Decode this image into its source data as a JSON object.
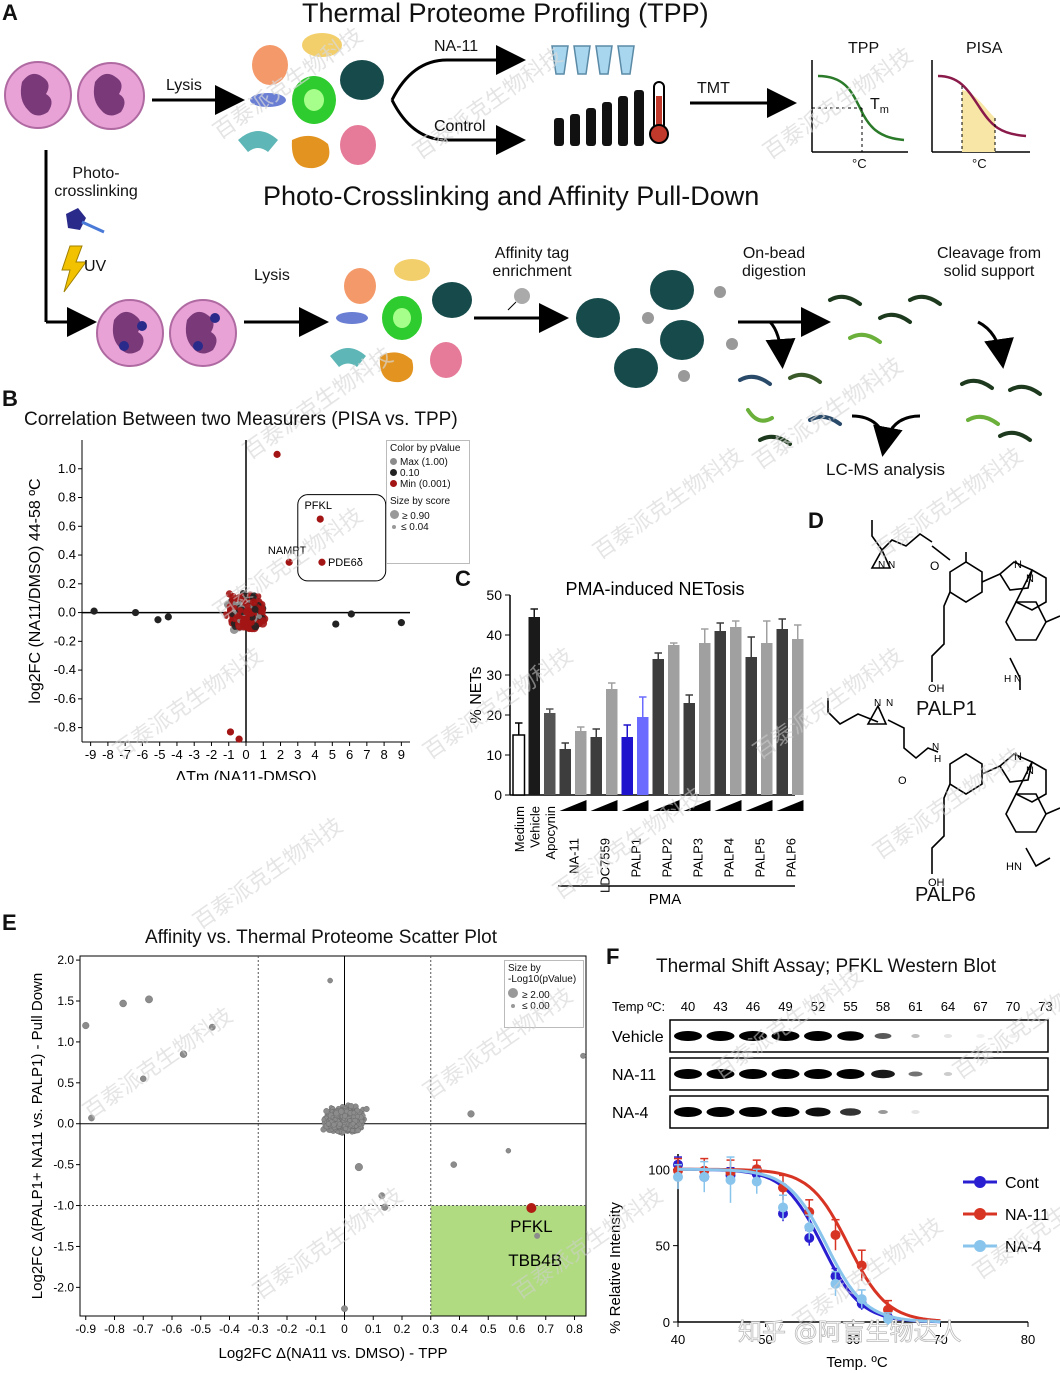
{
  "panels": {
    "A": "A",
    "B": "B",
    "C": "C",
    "D": "D",
    "E": "E",
    "F": "F"
  },
  "panel_a": {
    "title_tpp": "Thermal Proteome Profiling (TPP)",
    "title_photo": "Photo-Crosslinking and Affinity Pull-Down",
    "lysis": "Lysis",
    "na11": "NA-11",
    "control": "Control",
    "tmt": "TMT",
    "tpp_plot_title": "TPP",
    "pisa_plot_title": "PISA",
    "tm_label": "T",
    "tm_sub": "m",
    "degc": "°C",
    "photo_line1": "Photo-",
    "photo_line2": "crosslinking",
    "uv": "UV",
    "lysis2": "Lysis",
    "affinity_line1": "Affinity tag",
    "affinity_line2": "enrichment",
    "onbead_line1": "On-bead",
    "onbead_line2": "digestion",
    "cleavage_line1": "Cleavage from",
    "cleavage_line2": "solid support",
    "lcms": "LC-MS analysis"
  },
  "panel_b": {
    "legend_title": "Color by pValue",
    "legend_color_items": [
      "Max (1.00)",
      "0.10",
      "Min (0.001)"
    ],
    "legend_colors": [
      "#8c8c8c",
      "#222222",
      "#a31515"
    ],
    "legend_size_title": "Size by score",
    "legend_size_items": [
      "≥ 0.90",
      "≤ 0.04"
    ],
    "highlight_labels": [
      "PFKL",
      "NAMPT",
      "PDE6δ"
    ],
    "chart_data": {
      "type": "scatter",
      "title": "Correlation Between two Measurers (PISA vs. TPP)",
      "xlabel": "ΔTm (NA11-DMSO)",
      "ylabel": "log2FC (NA11/DMSO) 44-58 ºC",
      "xlim": [
        -9.5,
        9.5
      ],
      "ylim": [
        -0.9,
        1.2
      ],
      "x_ticks": [
        "-9",
        "-8",
        "-7",
        "-6",
        "-5",
        "-4",
        "-3",
        "-2",
        "-1",
        "0",
        "1",
        "2",
        "3",
        "4",
        "5",
        "6",
        "7",
        "8",
        "9"
      ],
      "y_ticks": [
        "1.0",
        "0.8",
        "0.6",
        "0.4",
        "0.2",
        "0.0",
        "-0.2",
        "-0.4",
        "-0.6",
        "-0.8"
      ],
      "highlighted_points": [
        {
          "label": "PFKL",
          "x": 4.3,
          "y": 0.65
        },
        {
          "label": "NAMPT",
          "x": 2.5,
          "y": 0.35
        },
        {
          "label": "PDE6δ",
          "x": 4.4,
          "y": 0.35
        }
      ]
    }
  },
  "panel_c": {
    "chart_data": {
      "type": "bar",
      "title": "PMA-induced NETosis",
      "ylabel": "% NETs",
      "ylim": [
        0,
        50
      ],
      "y_ticks": [
        "0",
        "10",
        "20",
        "30",
        "40",
        "50"
      ],
      "bars": [
        {
          "label": "Medium",
          "value": 15,
          "err": 3,
          "color": "#ffffff"
        },
        {
          "label": "Vehicle",
          "value": 44.5,
          "err": 2,
          "color": "#1a1a1a"
        },
        {
          "label": "Apocynin",
          "value": 20.5,
          "err": 1,
          "color": "#555555"
        },
        {
          "label": "NA-11",
          "value": 11.5,
          "err": 1.5,
          "color": "#3d3d3d"
        },
        {
          "label": "",
          "value": 16,
          "err": 1,
          "color": "#a0a0a0"
        },
        {
          "label": "LDC7559",
          "value": 14.5,
          "err": 2,
          "color": "#3d3d3d"
        },
        {
          "label": "",
          "value": 26.5,
          "err": 1.5,
          "color": "#a0a0a0"
        },
        {
          "label": "PALP1",
          "value": 14.5,
          "err": 3,
          "color": "#1e12cc"
        },
        {
          "label": "",
          "value": 19.5,
          "err": 5,
          "color": "#6b6bff"
        },
        {
          "label": "PALP2",
          "value": 34,
          "err": 1.5,
          "color": "#3d3d3d"
        },
        {
          "label": "",
          "value": 37.5,
          "err": 0.5,
          "color": "#a0a0a0"
        },
        {
          "label": "PALP3",
          "value": 23,
          "err": 2,
          "color": "#3d3d3d"
        },
        {
          "label": "",
          "value": 38,
          "err": 3.5,
          "color": "#a0a0a0"
        },
        {
          "label": "PALP4",
          "value": 41,
          "err": 2,
          "color": "#3d3d3d"
        },
        {
          "label": "",
          "value": 42,
          "err": 1.5,
          "color": "#a0a0a0"
        },
        {
          "label": "PALP5",
          "value": 34.5,
          "err": 5,
          "color": "#3d3d3d"
        },
        {
          "label": "",
          "value": 38,
          "err": 5.5,
          "color": "#a0a0a0"
        },
        {
          "label": "PALP6",
          "value": 41.5,
          "err": 2.5,
          "color": "#3d3d3d"
        },
        {
          "label": "",
          "value": 39,
          "err": 3.5,
          "color": "#a0a0a0"
        }
      ],
      "group_label": "PMA"
    }
  },
  "panel_d": {
    "palp1": "PALP1",
    "palp6": "PALP6",
    "atoms": {
      "o": "O",
      "oh": "OH",
      "n": "N",
      "hn": "HN",
      "h": "H"
    }
  },
  "panel_e": {
    "legend_title_1": "Size by",
    "legend_title_2": "-Log10(pValue)",
    "legend_items": [
      "≥ 2.00",
      "≤ 0.00"
    ],
    "highlight_labels": [
      "PFKL",
      "TBB4B"
    ],
    "highlight_color": "#b0db80",
    "chart_data": {
      "type": "scatter",
      "title": "Affinity vs. Thermal Proteome Scatter Plot",
      "xlabel": "Log2FC Δ(NA11 vs. DMSO) - TPP",
      "ylabel": "Log2FC Δ(PALP1+ NA11 vs. PALP1) - Pull Down",
      "xlim": [
        -0.92,
        0.84
      ],
      "ylim": [
        -2.35,
        2.05
      ],
      "x_ticks": [
        "-0.9",
        "-0.8",
        "-0.7",
        "-0.6",
        "-0.5",
        "-0.4",
        "-0.3",
        "-0.2",
        "-0.1",
        "0",
        "0.1",
        "0.2",
        "0.3",
        "0.4",
        "0.5",
        "0.6",
        "0.7",
        "0.8"
      ],
      "y_ticks": [
        "2.0",
        "1.5",
        "1.0",
        "0.5",
        "0.0",
        "-0.5",
        "-1.0",
        "-1.5",
        "-2.0"
      ],
      "thresholds": {
        "x": [
          -0.3,
          0.3
        ],
        "y": [
          -1.0
        ]
      },
      "highlighted_points": [
        {
          "label": "PFKL",
          "x": 0.65,
          "y": -1.03
        },
        {
          "label": "TBB4B",
          "x": 0.67,
          "y": -1.37
        }
      ]
    }
  },
  "panel_f": {
    "wb_title": "Thermal Shift Assay; PFKL Western Blot",
    "temp_label": "Temp ºC:",
    "temps": [
      "40",
      "43",
      "46",
      "49",
      "52",
      "55",
      "58",
      "61",
      "64",
      "67",
      "70",
      "73"
    ],
    "rows": [
      "Vehicle",
      "NA-11",
      "NA-4"
    ],
    "band_intensity": [
      [
        1,
        1,
        1,
        1,
        1,
        0.95,
        0.6,
        0.2,
        0.05,
        0.01,
        0.01,
        0
      ],
      [
        1,
        1,
        1,
        1,
        1,
        1,
        0.85,
        0.5,
        0.15,
        0,
        0,
        0
      ],
      [
        1,
        1,
        1,
        1,
        0.9,
        0.75,
        0.35,
        0.05,
        0,
        0,
        0,
        0
      ]
    ],
    "chart_data": {
      "type": "line",
      "xlabel": "Temp. ºC",
      "ylabel": "% Relative Intensity",
      "xlim": [
        40,
        80
      ],
      "ylim": [
        0,
        110
      ],
      "x_ticks": [
        "40",
        "50",
        "60",
        "70",
        "80"
      ],
      "y_ticks": [
        "0",
        "50",
        "100"
      ],
      "series": [
        {
          "name": "Cont",
          "color": "#2a1fd0",
          "tm": 56.5,
          "points": [
            [
              40,
              103
            ],
            [
              43,
              95
            ],
            [
              46,
              96
            ],
            [
              49,
              97
            ],
            [
              52,
              71
            ],
            [
              55,
              55
            ],
            [
              58,
              30
            ],
            [
              61,
              12
            ],
            [
              64,
              3
            ]
          ],
          "errs": [
            5,
            5,
            5,
            5,
            5,
            5,
            5,
            4,
            3
          ]
        },
        {
          "name": "NA-11",
          "color": "#d83424",
          "tm": 59.5,
          "points": [
            [
              40,
              99
            ],
            [
              43,
              99
            ],
            [
              46,
              98
            ],
            [
              49,
              100
            ],
            [
              52,
              88
            ],
            [
              55,
              72
            ],
            [
              58,
              57
            ],
            [
              61,
              37
            ],
            [
              64,
              8
            ]
          ],
          "errs": [
            8,
            8,
            8,
            6,
            8,
            8,
            10,
            10,
            6
          ]
        },
        {
          "name": "NA-4",
          "color": "#88c4ec",
          "tm": 57,
          "points": [
            [
              40,
              95
            ],
            [
              43,
              95
            ],
            [
              46,
              93
            ],
            [
              49,
              92
            ],
            [
              52,
              75
            ],
            [
              55,
              62
            ],
            [
              58,
              25
            ],
            [
              61,
              15
            ],
            [
              64,
              2
            ]
          ],
          "errs": [
            8,
            10,
            15,
            8,
            8,
            8,
            8,
            6,
            4
          ]
        }
      ]
    }
  },
  "watermark": {
    "text": "百泰派克生物科技",
    "signature": "知乎 @阿盲生物达人"
  }
}
